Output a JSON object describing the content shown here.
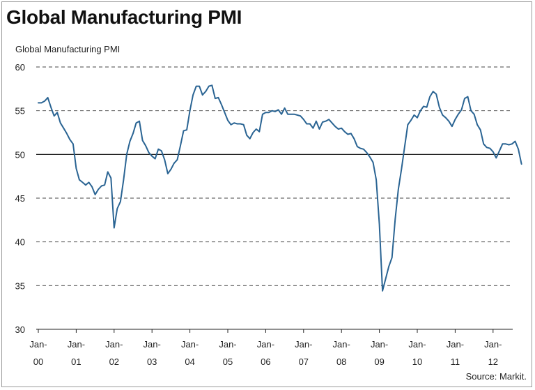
{
  "title": "Global Manufacturing PMI",
  "source": "Source: Markit.",
  "chart_data": {
    "type": "line",
    "title": "Global Manufacturing PMI",
    "ylabel": "Global Manufacturing PMI",
    "xlabel": "",
    "ylim": [
      30,
      60
    ],
    "yticks": [
      30,
      35,
      40,
      45,
      50,
      55,
      60
    ],
    "grid": "horizontal dashed",
    "reference_line": 50,
    "line_color": "#2a6493",
    "xtick_labels": [
      {
        "top": "Jan-",
        "bottom": "00",
        "year": 2000
      },
      {
        "top": "Jan-",
        "bottom": "01",
        "year": 2001
      },
      {
        "top": "Jan-",
        "bottom": "02",
        "year": 2002
      },
      {
        "top": "Jan-",
        "bottom": "03",
        "year": 2003
      },
      {
        "top": "Jan-",
        "bottom": "04",
        "year": 2004
      },
      {
        "top": "Jan-",
        "bottom": "05",
        "year": 2005
      },
      {
        "top": "Jan-",
        "bottom": "06",
        "year": 2006
      },
      {
        "top": "Jan-",
        "bottom": "07",
        "year": 2007
      },
      {
        "top": "Jan-",
        "bottom": "08",
        "year": 2008
      },
      {
        "top": "Jan-",
        "bottom": "09",
        "year": 2009
      },
      {
        "top": "Jan-",
        "bottom": "10",
        "year": 2010
      },
      {
        "top": "Jan-",
        "bottom": "11",
        "year": 2011
      },
      {
        "top": "Jan-",
        "bottom": "12",
        "year": 2012
      }
    ],
    "series": [
      {
        "start": "2000-01",
        "frequency": "monthly",
        "values": [
          55.9,
          55.9,
          56.1,
          56.5,
          55.4,
          54.4,
          54.8,
          53.6,
          53.0,
          52.4,
          51.7,
          51.2,
          48.4,
          47.1,
          46.8,
          46.5,
          46.8,
          46.3,
          45.4,
          46.0,
          46.4,
          46.5,
          48.0,
          47.3,
          41.6,
          43.8,
          44.6,
          47.1,
          50.0,
          51.5,
          52.4,
          53.6,
          53.8,
          51.6,
          51.0,
          50.2,
          49.8,
          49.5,
          50.6,
          50.4,
          49.4,
          47.8,
          48.3,
          49.0,
          49.4,
          51.0,
          52.7,
          52.8,
          55.0,
          56.8,
          57.8,
          57.8,
          56.8,
          57.2,
          57.8,
          57.9,
          56.4,
          56.5,
          55.7,
          54.8,
          53.9,
          53.4,
          53.6,
          53.5,
          53.5,
          53.4,
          52.2,
          51.8,
          52.5,
          52.9,
          52.6,
          54.6,
          54.8,
          54.8,
          55.0,
          54.9,
          55.1,
          54.6,
          55.3,
          54.6,
          54.6,
          54.6,
          54.5,
          54.4,
          54.0,
          53.5,
          53.5,
          53.0,
          53.8,
          52.9,
          53.7,
          53.8,
          54.0,
          53.6,
          53.2,
          52.9,
          53.0,
          52.6,
          52.3,
          52.4,
          51.8,
          50.9,
          50.7,
          50.6,
          50.2,
          49.7,
          49.1,
          47.1,
          42.0,
          34.4,
          35.8,
          37.2,
          38.2,
          42.6,
          46.0,
          48.3,
          50.9,
          53.4,
          53.9,
          54.5,
          54.2,
          55.0,
          55.5,
          55.4,
          56.6,
          57.2,
          56.9,
          55.4,
          54.5,
          54.2,
          53.8,
          53.2,
          54.0,
          54.6,
          55.1,
          56.4,
          56.6,
          55.0,
          54.6,
          53.4,
          52.8,
          51.2,
          50.8,
          50.7,
          50.3,
          49.6,
          50.4,
          51.2,
          51.2,
          51.1,
          51.2,
          51.5,
          50.6,
          48.9
        ]
      }
    ]
  }
}
